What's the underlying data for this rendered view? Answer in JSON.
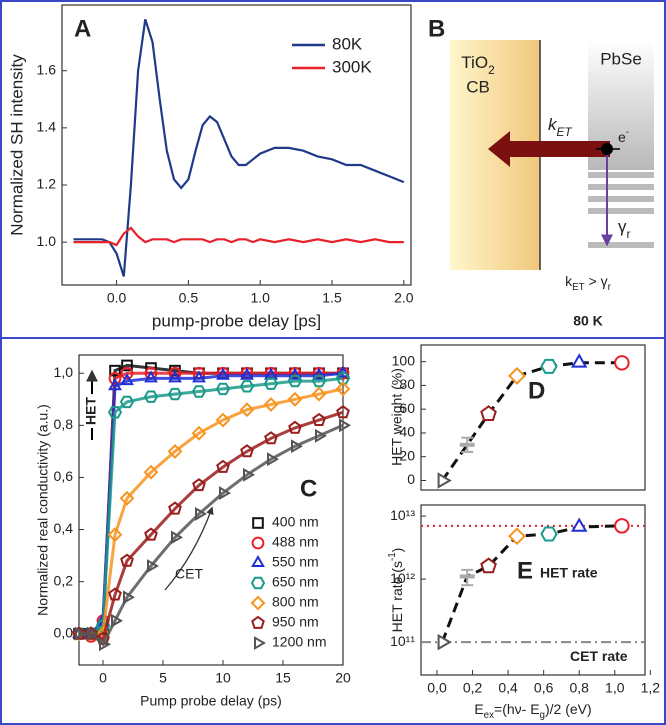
{
  "chart_data": [
    {
      "type": "line",
      "panel": "A",
      "x": [
        -0.3,
        -0.2,
        -0.1,
        -0.05,
        0.0,
        0.05,
        0.1,
        0.15,
        0.2,
        0.25,
        0.3,
        0.35,
        0.4,
        0.45,
        0.5,
        0.55,
        0.6,
        0.65,
        0.7,
        0.75,
        0.8,
        0.85,
        0.9,
        0.95,
        1.0,
        1.1,
        1.2,
        1.3,
        1.4,
        1.5,
        1.6,
        1.7,
        1.8,
        1.9,
        2.0
      ],
      "series": [
        {
          "name": "80K",
          "color": "#1f3a8a",
          "values": [
            1.01,
            1.01,
            1.01,
            1.0,
            0.96,
            0.88,
            1.2,
            1.6,
            1.78,
            1.7,
            1.5,
            1.32,
            1.22,
            1.19,
            1.22,
            1.32,
            1.41,
            1.44,
            1.42,
            1.36,
            1.3,
            1.27,
            1.27,
            1.29,
            1.31,
            1.33,
            1.33,
            1.32,
            1.3,
            1.29,
            1.27,
            1.27,
            1.25,
            1.23,
            1.21
          ]
        },
        {
          "name": "300K",
          "color": "#e8202a",
          "values": [
            1.0,
            1.0,
            1.0,
            1.0,
            0.99,
            1.03,
            1.05,
            1.02,
            1.0,
            1.01,
            1.01,
            1.01,
            1.0,
            1.01,
            1.01,
            1.01,
            1.01,
            1.0,
            1.01,
            1.01,
            1.0,
            1.01,
            1.01,
            1.0,
            1.01,
            1.0,
            1.01,
            1.0,
            1.01,
            1.0,
            1.01,
            1.0,
            1.01,
            1.0,
            1.0
          ]
        }
      ],
      "xlim": [
        -0.38,
        2.05
      ],
      "ylim": [
        0.85,
        1.83
      ],
      "xticks": [
        {
          "value": 0,
          "label": "0.0"
        },
        0.5,
        {
          "value": 1,
          "label": "1.0"
        },
        1.5,
        {
          "value": 2,
          "label": "2.0"
        }
      ],
      "yticks": [
        {
          "value": 1,
          "label": "1.0"
        },
        1.2,
        1.4,
        1.6
      ],
      "x_label": "pump-probe delay [ps]",
      "y_label": "Normalized SH intensity",
      "legend": "upper right"
    },
    {
      "type": "scatter",
      "panel": "C",
      "x": [
        -2,
        -1,
        0,
        1,
        2,
        4,
        6,
        8,
        10,
        12,
        14,
        16,
        18,
        20
      ],
      "series": [
        {
          "name": "400 nm",
          "color": "#111111",
          "marker": "square",
          "values": [
            0.0,
            0.0,
            0.02,
            1.01,
            1.03,
            1.02,
            1.01,
            1.0,
            1.0,
            1.0,
            1.0,
            1.0,
            1.0,
            1.0
          ]
        },
        {
          "name": "488 nm",
          "color": "#e8202a",
          "marker": "circle",
          "values": [
            0.0,
            -0.01,
            0.05,
            0.98,
            1.0,
            1.0,
            1.0,
            1.0,
            1.0,
            1.0,
            1.0,
            1.0,
            1.0,
            1.0
          ]
        },
        {
          "name": "550 nm",
          "color": "#1f2fd6",
          "marker": "triangle-up",
          "values": [
            0.0,
            0.0,
            0.05,
            0.95,
            0.97,
            0.98,
            0.98,
            0.98,
            0.99,
            0.99,
            0.99,
            0.99,
            0.99,
            1.0
          ]
        },
        {
          "name": "650 nm",
          "color": "#1a9a8a",
          "marker": "hexagon",
          "values": [
            0.0,
            0.0,
            0.03,
            0.85,
            0.89,
            0.91,
            0.92,
            0.93,
            0.94,
            0.95,
            0.96,
            0.97,
            0.97,
            0.98
          ]
        },
        {
          "name": "800 nm",
          "color": "#f7931e",
          "marker": "diamond",
          "values": [
            0.0,
            0.0,
            0.0,
            0.38,
            0.52,
            0.62,
            0.7,
            0.77,
            0.82,
            0.86,
            0.88,
            0.9,
            0.92,
            0.94
          ]
        },
        {
          "name": "950 nm",
          "color": "#9b1c1c",
          "marker": "pentagon",
          "values": [
            0.0,
            0.0,
            -0.02,
            0.15,
            0.28,
            0.38,
            0.48,
            0.57,
            0.64,
            0.7,
            0.75,
            0.79,
            0.82,
            0.85
          ]
        },
        {
          "name": "1200 nm",
          "color": "#555555",
          "marker": "triangle-right",
          "values": [
            0.0,
            0.0,
            -0.04,
            0.05,
            0.14,
            0.26,
            0.37,
            0.46,
            0.54,
            0.61,
            0.67,
            0.72,
            0.76,
            0.8
          ]
        }
      ],
      "xlim": [
        -2,
        20
      ],
      "ylim": [
        -0.12,
        1.07
      ],
      "xticks": [
        0,
        5,
        10,
        15,
        20
      ],
      "yticks": [
        {
          "value": 0,
          "label": "0,0"
        },
        {
          "value": 0.2,
          "label": "0,2"
        },
        {
          "value": 0.4,
          "label": "0,4"
        },
        {
          "value": 0.6,
          "label": "0,6"
        },
        {
          "value": 0.8,
          "label": "0,8"
        },
        {
          "value": 1,
          "label": "1,0"
        }
      ],
      "x_label": "Pump probe delay (ps)",
      "y_label": "Normalized real conductivity (a.u.)",
      "annotations": [
        "HET",
        "CET"
      ],
      "legend": "lower right"
    },
    {
      "type": "scatter",
      "panel": "D",
      "x": [
        0.03,
        0.17,
        0.29,
        0.45,
        0.63,
        0.8,
        1.04
      ],
      "values": [
        0,
        30,
        56,
        88,
        96,
        99,
        99
      ],
      "errors": [
        null,
        6,
        null,
        null,
        null,
        null,
        null
      ],
      "colors": [
        "#555555",
        "#aaaaaa",
        "#9b1c1c",
        "#f7931e",
        "#1a9a8a",
        "#1f2fd6",
        "#e8202a"
      ],
      "markers": [
        "triangle-right",
        "dash",
        "pentagon",
        "diamond",
        "hexagon",
        "triangle-up",
        "circle"
      ],
      "xlim": [
        -0.09,
        1.17
      ],
      "ylim": [
        -8,
        114
      ],
      "yticks": [
        0,
        20,
        40,
        60,
        80,
        100
      ],
      "y_label": "HET weight (%)"
    },
    {
      "type": "scatter",
      "panel": "E",
      "log_y": true,
      "x": [
        0.03,
        0.17,
        0.29,
        0.45,
        0.63,
        0.8,
        1.04
      ],
      "values": [
        100000000000.0,
        1100000000000.0,
        1600000000000.0,
        4800000000000.0,
        5200000000000.0,
        6700000000000.0,
        7000000000000.0
      ],
      "errors": [
        null,
        300000000000.0,
        null,
        null,
        null,
        null,
        null
      ],
      "colors": [
        "#555555",
        "#aaaaaa",
        "#9b1c1c",
        "#f7931e",
        "#1a9a8a",
        "#1f2fd6",
        "#e8202a"
      ],
      "markers": [
        "triangle-right",
        "dash",
        "pentagon",
        "diamond",
        "hexagon",
        "triangle-up",
        "circle"
      ],
      "xlim": [
        -0.09,
        1.17
      ],
      "ylim": [
        30000000000.0,
        15000000000000.0
      ],
      "xticks": [
        {
          "value": 0,
          "label": "0,0"
        },
        {
          "value": 0.2,
          "label": "0,2"
        },
        {
          "value": 0.4,
          "label": "0,4"
        },
        {
          "value": 0.6,
          "label": "0,6"
        },
        {
          "value": 0.8,
          "label": "0,8"
        },
        {
          "value": 1,
          "label": "1,0"
        },
        {
          "value": 1.2,
          "label": "1,2"
        }
      ],
      "yticks": [
        {
          "value": 100000000000.0,
          "label": "10¹¹"
        },
        {
          "value": 1000000000000.0,
          "label": "10¹²"
        },
        {
          "value": 10000000000000.0,
          "label": "10¹³"
        }
      ],
      "levels": [
        {
          "value": 7000000000000.0,
          "color": "#e8202a",
          "style": "dotted",
          "label": "HET rate"
        },
        {
          "value": 100000000000.0,
          "color": "#888888",
          "style": "dashdot",
          "label": "CET rate"
        }
      ],
      "x_label": [
        "E",
        {
          "sub": "ex"
        },
        "=(hν- E",
        {
          "sub": "g"
        },
        ")/2 (eV)"
      ],
      "y_label": [
        "HET rate (s",
        {
          "sup": "-1"
        },
        ")"
      ]
    }
  ],
  "diagram": {
    "panel": "B",
    "tio2": [
      "TiO",
      {
        "sub": "2"
      }
    ],
    "cb": "CB",
    "pbse": "PbSe",
    "k_et": [
      "k",
      {
        "sub": "ET"
      }
    ],
    "electron": [
      "e",
      {
        "sup": "-"
      }
    ],
    "gamma": [
      "γ",
      {
        "sub": "r"
      }
    ],
    "relation": [
      "k",
      {
        "sub": "ET"
      },
      " > γ",
      {
        "sub": "r"
      }
    ],
    "temperature": "80 K"
  }
}
